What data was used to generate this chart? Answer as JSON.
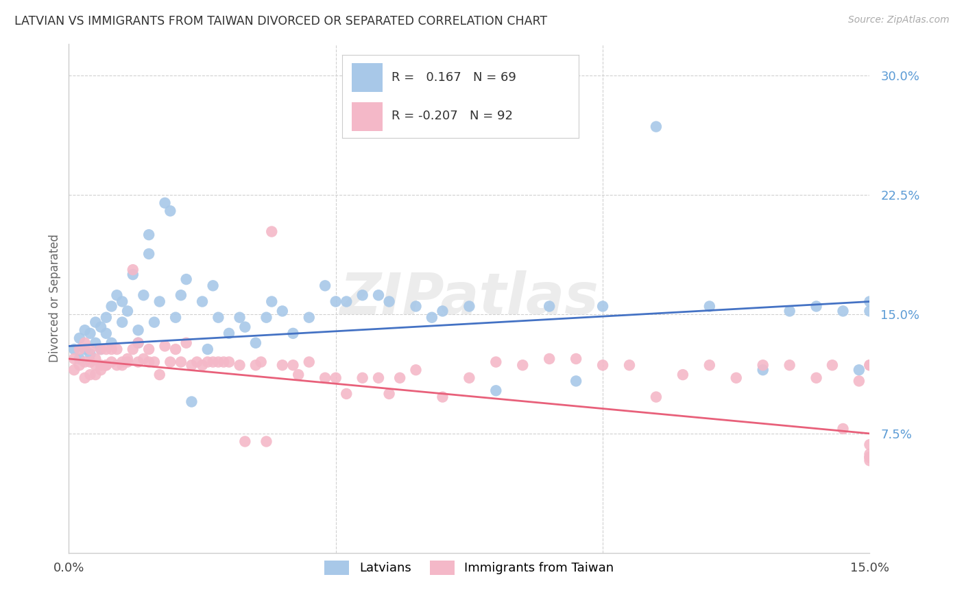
{
  "title": "LATVIAN VS IMMIGRANTS FROM TAIWAN DIVORCED OR SEPARATED CORRELATION CHART",
  "source": "Source: ZipAtlas.com",
  "ylabel": "Divorced or Separated",
  "xlim": [
    0.0,
    0.15
  ],
  "ylim": [
    0.0,
    0.32
  ],
  "yticks": [
    0.075,
    0.15,
    0.225,
    0.3
  ],
  "ytick_labels": [
    "7.5%",
    "15.0%",
    "22.5%",
    "30.0%"
  ],
  "xticks": [
    0.0,
    0.05,
    0.1,
    0.15
  ],
  "xtick_labels": [
    "0.0%",
    "",
    "",
    "15.0%"
  ],
  "latvian_color": "#a8c8e8",
  "taiwan_color": "#f4b8c8",
  "latvian_line_color": "#4472c4",
  "taiwan_line_color": "#e8607a",
  "latvian_R": 0.167,
  "latvian_N": 69,
  "taiwan_R": -0.207,
  "taiwan_N": 92,
  "watermark_text": "ZIPatlas",
  "background_color": "#ffffff",
  "grid_color": "#d0d0d0",
  "latvian_x": [
    0.001,
    0.002,
    0.002,
    0.003,
    0.003,
    0.004,
    0.004,
    0.005,
    0.005,
    0.006,
    0.006,
    0.007,
    0.007,
    0.008,
    0.008,
    0.009,
    0.01,
    0.01,
    0.011,
    0.012,
    0.013,
    0.013,
    0.014,
    0.015,
    0.015,
    0.016,
    0.017,
    0.018,
    0.019,
    0.02,
    0.021,
    0.022,
    0.023,
    0.025,
    0.026,
    0.027,
    0.028,
    0.03,
    0.032,
    0.033,
    0.035,
    0.037,
    0.038,
    0.04,
    0.042,
    0.045,
    0.048,
    0.05,
    0.052,
    0.055,
    0.058,
    0.06,
    0.065,
    0.068,
    0.07,
    0.075,
    0.08,
    0.09,
    0.095,
    0.1,
    0.11,
    0.12,
    0.13,
    0.135,
    0.14,
    0.145,
    0.148,
    0.15,
    0.15
  ],
  "latvian_y": [
    0.128,
    0.135,
    0.122,
    0.14,
    0.128,
    0.138,
    0.125,
    0.145,
    0.132,
    0.128,
    0.142,
    0.138,
    0.148,
    0.155,
    0.132,
    0.162,
    0.145,
    0.158,
    0.152,
    0.175,
    0.14,
    0.132,
    0.162,
    0.2,
    0.188,
    0.145,
    0.158,
    0.22,
    0.215,
    0.148,
    0.162,
    0.172,
    0.095,
    0.158,
    0.128,
    0.168,
    0.148,
    0.138,
    0.148,
    0.142,
    0.132,
    0.148,
    0.158,
    0.152,
    0.138,
    0.148,
    0.168,
    0.158,
    0.158,
    0.162,
    0.162,
    0.158,
    0.155,
    0.148,
    0.152,
    0.155,
    0.102,
    0.155,
    0.108,
    0.155,
    0.268,
    0.155,
    0.115,
    0.152,
    0.155,
    0.152,
    0.115,
    0.158,
    0.152
  ],
  "taiwan_x": [
    0.001,
    0.001,
    0.002,
    0.002,
    0.003,
    0.003,
    0.003,
    0.004,
    0.004,
    0.004,
    0.005,
    0.005,
    0.005,
    0.006,
    0.006,
    0.006,
    0.007,
    0.007,
    0.007,
    0.008,
    0.008,
    0.009,
    0.009,
    0.01,
    0.01,
    0.011,
    0.011,
    0.012,
    0.012,
    0.013,
    0.013,
    0.014,
    0.015,
    0.015,
    0.016,
    0.017,
    0.018,
    0.019,
    0.02,
    0.021,
    0.022,
    0.023,
    0.024,
    0.025,
    0.026,
    0.027,
    0.028,
    0.029,
    0.03,
    0.032,
    0.033,
    0.035,
    0.036,
    0.037,
    0.038,
    0.04,
    0.042,
    0.043,
    0.045,
    0.048,
    0.05,
    0.052,
    0.055,
    0.058,
    0.06,
    0.062,
    0.065,
    0.07,
    0.075,
    0.08,
    0.085,
    0.09,
    0.095,
    0.1,
    0.105,
    0.11,
    0.115,
    0.12,
    0.125,
    0.13,
    0.135,
    0.14,
    0.143,
    0.145,
    0.148,
    0.15,
    0.15,
    0.15,
    0.15,
    0.15,
    0.15,
    0.15
  ],
  "taiwan_y": [
    0.122,
    0.115,
    0.128,
    0.118,
    0.132,
    0.12,
    0.11,
    0.12,
    0.112,
    0.128,
    0.118,
    0.122,
    0.112,
    0.115,
    0.128,
    0.118,
    0.118,
    0.128,
    0.118,
    0.12,
    0.128,
    0.128,
    0.118,
    0.12,
    0.118,
    0.12,
    0.122,
    0.128,
    0.178,
    0.12,
    0.132,
    0.122,
    0.12,
    0.128,
    0.12,
    0.112,
    0.13,
    0.12,
    0.128,
    0.12,
    0.132,
    0.118,
    0.12,
    0.118,
    0.12,
    0.12,
    0.12,
    0.12,
    0.12,
    0.118,
    0.07,
    0.118,
    0.12,
    0.07,
    0.202,
    0.118,
    0.118,
    0.112,
    0.12,
    0.11,
    0.11,
    0.1,
    0.11,
    0.11,
    0.1,
    0.11,
    0.115,
    0.098,
    0.11,
    0.12,
    0.118,
    0.122,
    0.122,
    0.118,
    0.118,
    0.098,
    0.112,
    0.118,
    0.11,
    0.118,
    0.118,
    0.11,
    0.118,
    0.078,
    0.108,
    0.06,
    0.068,
    0.058,
    0.118,
    0.118,
    0.06,
    0.062
  ]
}
